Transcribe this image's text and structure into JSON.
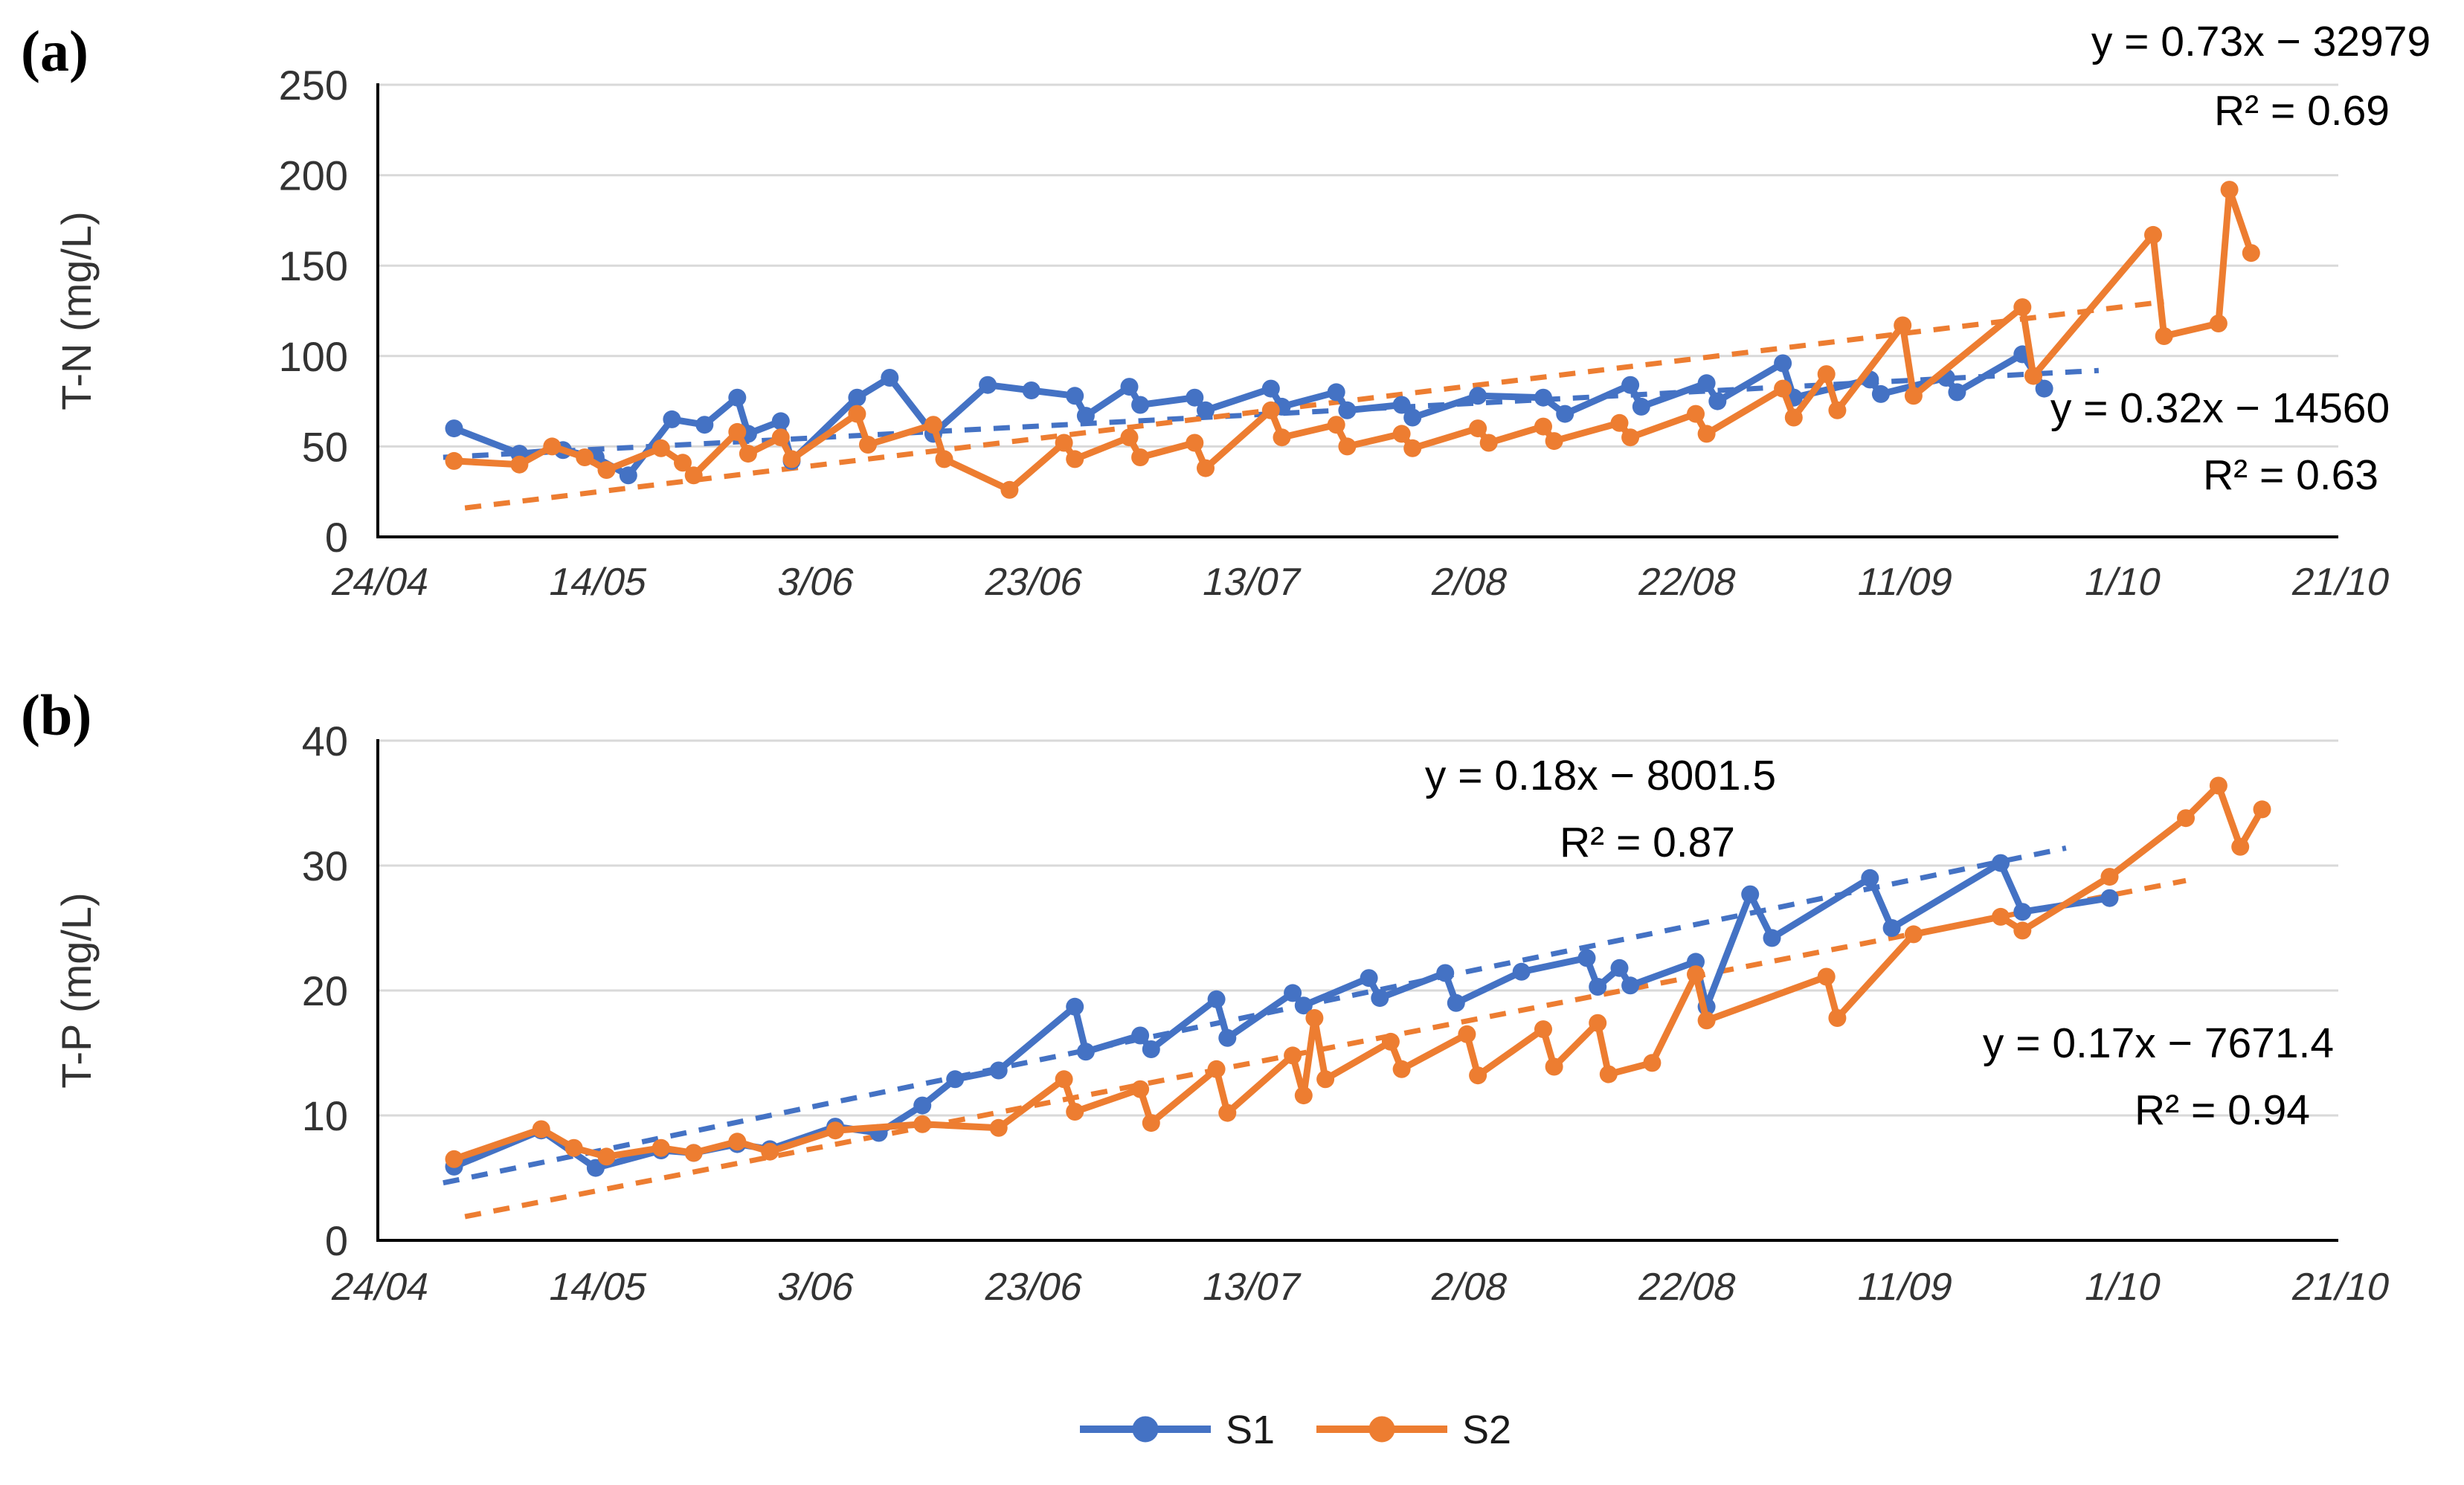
{
  "figure": {
    "panel_a_tag": "(a)",
    "panel_b_tag": "(b)"
  },
  "legend": {
    "items": [
      {
        "label": "S1",
        "color": "#4472C4"
      },
      {
        "label": "S2",
        "color": "#ED7D31"
      }
    ]
  },
  "chart_data": [
    {
      "type": "line",
      "panel": "a",
      "tag": "(a)",
      "ylabel": "T-N (mg/L)",
      "ylim": [
        0,
        250
      ],
      "yticks": [
        0,
        50,
        100,
        150,
        200,
        250
      ],
      "grid": "horizontal",
      "x_axis": {
        "tick_labels": [
          "24/04",
          "14/05",
          "3/06",
          "23/06",
          "13/07",
          "2/08",
          "22/08",
          "11/09",
          "1/10",
          "21/10"
        ],
        "tick_interval_days": 20,
        "note": "x values below are days after 24/04"
      },
      "series": [
        {
          "name": "S1",
          "color": "#4472C4",
          "points": [
            [
              7,
              60
            ],
            [
              13,
              46
            ],
            [
              17,
              48
            ],
            [
              20,
              44
            ],
            [
              23,
              34
            ],
            [
              27,
              65
            ],
            [
              30,
              62
            ],
            [
              33,
              77
            ],
            [
              34,
              57
            ],
            [
              37,
              64
            ],
            [
              38,
              42
            ],
            [
              44,
              77
            ],
            [
              47,
              88
            ],
            [
              51,
              57
            ],
            [
              56,
              84
            ],
            [
              60,
              81
            ],
            [
              64,
              78
            ],
            [
              65,
              67
            ],
            [
              69,
              83
            ],
            [
              70,
              73
            ],
            [
              75,
              77
            ],
            [
              76,
              70
            ],
            [
              82,
              82
            ],
            [
              83,
              72
            ],
            [
              88,
              80
            ],
            [
              89,
              70
            ],
            [
              94,
              73
            ],
            [
              95,
              66
            ],
            [
              101,
              78
            ],
            [
              107,
              77
            ],
            [
              109,
              68
            ],
            [
              115,
              84
            ],
            [
              116,
              72
            ],
            [
              122,
              85
            ],
            [
              123,
              75
            ],
            [
              129,
              96
            ],
            [
              130,
              77
            ],
            [
              137,
              87
            ],
            [
              138,
              79
            ],
            [
              144,
              88
            ],
            [
              145,
              80
            ],
            [
              151,
              101
            ],
            [
              153,
              82
            ]
          ]
        },
        {
          "name": "S2",
          "color": "#ED7D31",
          "points": [
            [
              7,
              42
            ],
            [
              13,
              40
            ],
            [
              16,
              50
            ],
            [
              19,
              44
            ],
            [
              21,
              37
            ],
            [
              26,
              49
            ],
            [
              28,
              41
            ],
            [
              29,
              34
            ],
            [
              33,
              58
            ],
            [
              34,
              46
            ],
            [
              37,
              55
            ],
            [
              38,
              43
            ],
            [
              44,
              68
            ],
            [
              45,
              51
            ],
            [
              51,
              62
            ],
            [
              52,
              43
            ],
            [
              58,
              26
            ],
            [
              63,
              52
            ],
            [
              64,
              43
            ],
            [
              69,
              55
            ],
            [
              70,
              44
            ],
            [
              75,
              52
            ],
            [
              76,
              38
            ],
            [
              82,
              70
            ],
            [
              83,
              55
            ],
            [
              88,
              62
            ],
            [
              89,
              50
            ],
            [
              94,
              57
            ],
            [
              95,
              49
            ],
            [
              101,
              60
            ],
            [
              102,
              52
            ],
            [
              107,
              61
            ],
            [
              108,
              53
            ],
            [
              114,
              63
            ],
            [
              115,
              55
            ],
            [
              121,
              68
            ],
            [
              122,
              57
            ],
            [
              129,
              82
            ],
            [
              130,
              66
            ],
            [
              133,
              90
            ],
            [
              134,
              70
            ],
            [
              140,
              117
            ],
            [
              141,
              78
            ],
            [
              151,
              127
            ],
            [
              152,
              89
            ],
            [
              163,
              167
            ],
            [
              164,
              111
            ],
            [
              169,
              118
            ],
            [
              170,
              192
            ],
            [
              172,
              157
            ]
          ]
        }
      ],
      "trendlines": [
        {
          "series": "S1",
          "style": "dashed",
          "color": "#4472C4",
          "equation": "y = 0.32x − 14560",
          "r2": "R² = 0.63",
          "start": [
            6,
            44
          ],
          "end": [
            158,
            92
          ]
        },
        {
          "series": "S2",
          "style": "dashed",
          "color": "#ED7D31",
          "equation": "y = 0.73x − 32979",
          "r2": "R² = 0.69",
          "start": [
            8,
            16
          ],
          "end": [
            164,
            130
          ]
        }
      ]
    },
    {
      "type": "line",
      "panel": "b",
      "tag": "(b)",
      "ylabel": "T-P (mg/L)",
      "ylim": [
        0,
        40
      ],
      "yticks": [
        0,
        10,
        20,
        30,
        40
      ],
      "grid": "horizontal",
      "x_axis": {
        "tick_labels": [
          "24/04",
          "14/05",
          "3/06",
          "23/06",
          "13/07",
          "2/08",
          "22/08",
          "11/09",
          "1/10",
          "21/10"
        ],
        "tick_interval_days": 20,
        "note": "x values below are days after 24/04"
      },
      "series": [
        {
          "name": "S1",
          "color": "#4472C4",
          "points": [
            [
              7,
              5.9
            ],
            [
              15,
              8.8
            ],
            [
              20,
              5.8
            ],
            [
              26,
              7.2
            ],
            [
              29,
              7.0
            ],
            [
              33,
              7.7
            ],
            [
              36,
              7.3
            ],
            [
              42,
              9.1
            ],
            [
              46,
              8.6
            ],
            [
              50,
              10.8
            ],
            [
              53,
              12.9
            ],
            [
              57,
              13.6
            ],
            [
              64,
              18.7
            ],
            [
              65,
              15.1
            ],
            [
              70,
              16.4
            ],
            [
              71,
              15.3
            ],
            [
              77,
              19.3
            ],
            [
              78,
              16.2
            ],
            [
              84,
              19.8
            ],
            [
              85,
              18.8
            ],
            [
              91,
              21.0
            ],
            [
              92,
              19.4
            ],
            [
              98,
              21.4
            ],
            [
              99,
              19.0
            ],
            [
              105,
              21.5
            ],
            [
              111,
              22.6
            ],
            [
              112,
              20.3
            ],
            [
              114,
              21.8
            ],
            [
              115,
              20.4
            ],
            [
              121,
              22.3
            ],
            [
              122,
              18.7
            ],
            [
              126,
              27.7
            ],
            [
              128,
              24.2
            ],
            [
              137,
              29.0
            ],
            [
              139,
              25.0
            ],
            [
              149,
              30.2
            ],
            [
              151,
              26.3
            ],
            [
              159,
              27.4
            ]
          ]
        },
        {
          "name": "S2",
          "color": "#ED7D31",
          "points": [
            [
              7,
              6.5
            ],
            [
              15,
              8.9
            ],
            [
              18,
              7.4
            ],
            [
              21,
              6.7
            ],
            [
              26,
              7.4
            ],
            [
              29,
              7.0
            ],
            [
              33,
              7.9
            ],
            [
              36,
              7.1
            ],
            [
              42,
              8.8
            ],
            [
              50,
              9.3
            ],
            [
              57,
              9.0
            ],
            [
              63,
              12.9
            ],
            [
              64,
              10.3
            ],
            [
              70,
              12.1
            ],
            [
              71,
              9.4
            ],
            [
              77,
              13.7
            ],
            [
              78,
              10.2
            ],
            [
              84,
              14.8
            ],
            [
              85,
              11.6
            ],
            [
              86,
              17.8
            ],
            [
              87,
              12.9
            ],
            [
              93,
              15.9
            ],
            [
              94,
              13.7
            ],
            [
              100,
              16.5
            ],
            [
              101,
              13.2
            ],
            [
              107,
              16.9
            ],
            [
              108,
              13.9
            ],
            [
              112,
              17.4
            ],
            [
              113,
              13.3
            ],
            [
              117,
              14.2
            ],
            [
              121,
              21.3
            ],
            [
              122,
              17.6
            ],
            [
              133,
              21.1
            ],
            [
              134,
              17.8
            ],
            [
              141,
              24.5
            ],
            [
              149,
              25.9
            ],
            [
              151,
              24.8
            ],
            [
              159,
              29.1
            ],
            [
              166,
              33.8
            ],
            [
              169,
              36.4
            ],
            [
              171,
              31.5
            ],
            [
              173,
              34.5
            ]
          ]
        }
      ],
      "trendlines": [
        {
          "series": "S1",
          "style": "dashed",
          "color": "#4472C4",
          "equation": "y = 0.18x − 8001.5",
          "r2": "R² = 0.87",
          "start": [
            6,
            4.6
          ],
          "end": [
            155,
            31.4
          ]
        },
        {
          "series": "S2",
          "style": "dashed",
          "color": "#ED7D31",
          "equation": "y = 0.17x − 7671.4",
          "r2": "R² = 0.94",
          "start": [
            8,
            1.9
          ],
          "end": [
            166,
            28.8
          ]
        }
      ]
    }
  ]
}
